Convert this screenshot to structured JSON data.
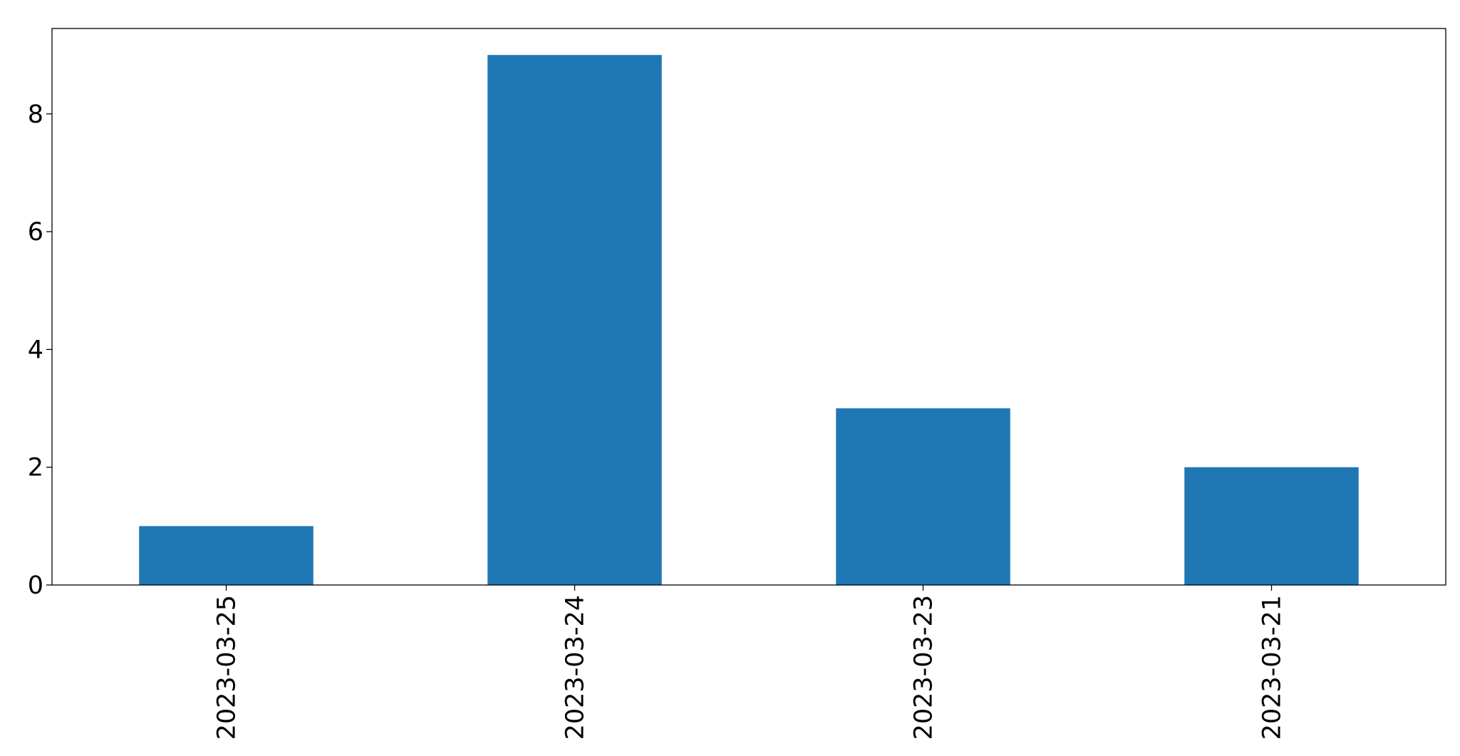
{
  "chart_data": {
    "type": "bar",
    "title": "",
    "xlabel": "",
    "ylabel": "",
    "categories": [
      "2023-03-25",
      "2023-03-24",
      "2023-03-23",
      "2023-03-21"
    ],
    "values": [
      1,
      9,
      3,
      2
    ],
    "ylim": [
      0,
      9.45
    ],
    "yticks": [
      0,
      2,
      4,
      6,
      8
    ],
    "grid": false,
    "legend": null,
    "bar_color": "#1f77b4",
    "xtick_rotation": "vertical"
  }
}
